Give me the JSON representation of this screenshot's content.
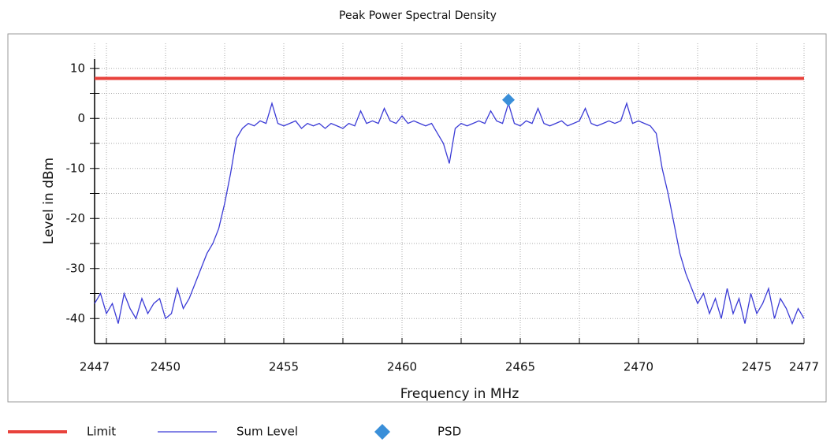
{
  "chart_data": {
    "type": "line",
    "title": "Peak Power Spectral Density",
    "xlabel": "Frequency in MHz",
    "ylabel": "Level in dBm",
    "xlim": [
      2447,
      2477
    ],
    "ylim": [
      -45,
      15
    ],
    "xticks": [
      2447,
      2450,
      2455,
      2460,
      2465,
      2470,
      2475,
      2477
    ],
    "x_minor_ticks": [
      2447.5,
      2452.5,
      2457.5,
      2462.5,
      2467.5,
      2472.5
    ],
    "yticks": [
      -40,
      -30,
      -20,
      -10,
      0,
      10
    ],
    "y_minor_ticks": [
      -35,
      -25,
      -15,
      -5,
      5
    ],
    "grid": true,
    "legend": "bottom",
    "series": [
      {
        "name": "Limit",
        "color": "#e8423c",
        "marker": "line",
        "x": [
          2447,
          2477
        ],
        "values": [
          8,
          8
        ]
      },
      {
        "name": "Sum Level",
        "color": "#3b3bd6",
        "marker": "line",
        "x": [
          2447,
          2447.25,
          2447.5,
          2447.75,
          2448,
          2448.25,
          2448.5,
          2448.75,
          2449,
          2449.25,
          2449.5,
          2449.75,
          2450,
          2450.25,
          2450.5,
          2450.75,
          2451,
          2451.25,
          2451.5,
          2451.75,
          2452,
          2452.25,
          2452.5,
          2452.75,
          2453,
          2453.25,
          2453.5,
          2453.75,
          2454,
          2454.25,
          2454.5,
          2454.75,
          2455,
          2455.25,
          2455.5,
          2455.75,
          2456,
          2456.25,
          2456.5,
          2456.75,
          2457,
          2457.25,
          2457.5,
          2457.75,
          2458,
          2458.25,
          2458.5,
          2458.75,
          2459,
          2459.25,
          2459.5,
          2459.75,
          2460,
          2460.25,
          2460.5,
          2460.75,
          2461,
          2461.25,
          2461.5,
          2461.75,
          2462,
          2462.25,
          2462.5,
          2462.75,
          2463,
          2463.25,
          2463.5,
          2463.75,
          2464,
          2464.25,
          2464.5,
          2464.75,
          2465,
          2465.25,
          2465.5,
          2465.75,
          2466,
          2466.25,
          2466.5,
          2466.75,
          2467,
          2467.25,
          2467.5,
          2467.75,
          2468,
          2468.25,
          2468.5,
          2468.75,
          2469,
          2469.25,
          2469.5,
          2469.75,
          2470,
          2470.25,
          2470.5,
          2470.75,
          2471,
          2471.25,
          2471.5,
          2471.75,
          2472,
          2472.25,
          2472.5,
          2472.75,
          2473,
          2473.25,
          2473.5,
          2473.75,
          2474,
          2474.25,
          2474.5,
          2474.75,
          2475,
          2475.25,
          2475.5,
          2475.75,
          2476,
          2476.25,
          2476.5,
          2476.75,
          2477
        ],
        "values": [
          -37,
          -35,
          -39,
          -37,
          -41,
          -35,
          -38,
          -40,
          -36,
          -39,
          -37,
          -36,
          -40,
          -39,
          -34,
          -38,
          -36,
          -33,
          -30,
          -27,
          -25,
          -22,
          -17,
          -11,
          -4,
          -2,
          -1,
          -1.5,
          -0.5,
          -1,
          3,
          -1,
          -1.5,
          -1,
          -0.5,
          -2,
          -1,
          -1.5,
          -1,
          -2,
          -1,
          -1.5,
          -2,
          -1,
          -1.5,
          1.5,
          -1,
          -0.5,
          -1,
          2,
          -0.5,
          -1,
          0.5,
          -1,
          -0.5,
          -1,
          -1.5,
          -1,
          -3,
          -5,
          -9,
          -2,
          -1,
          -1.5,
          -1,
          -0.5,
          -1,
          1.5,
          -0.5,
          -1,
          3,
          -1,
          -1.5,
          -0.5,
          -1,
          2,
          -1,
          -1.5,
          -1,
          -0.5,
          -1.5,
          -1,
          -0.5,
          2,
          -1,
          -1.5,
          -1,
          -0.5,
          -1,
          -0.5,
          3,
          -1,
          -0.5,
          -1,
          -1.5,
          -3,
          -10,
          -15,
          -21,
          -27,
          -31,
          -34,
          -37,
          -35,
          -39,
          -36,
          -40,
          -34,
          -39,
          -36,
          -41,
          -35,
          -39,
          -37,
          -34,
          -40,
          -36,
          -38,
          -41,
          -38,
          -40
        ]
      },
      {
        "name": "PSD",
        "color": "#3a8fd9",
        "marker": "diamond",
        "x": [
          2464.5
        ],
        "values": [
          3.7
        ]
      }
    ]
  }
}
